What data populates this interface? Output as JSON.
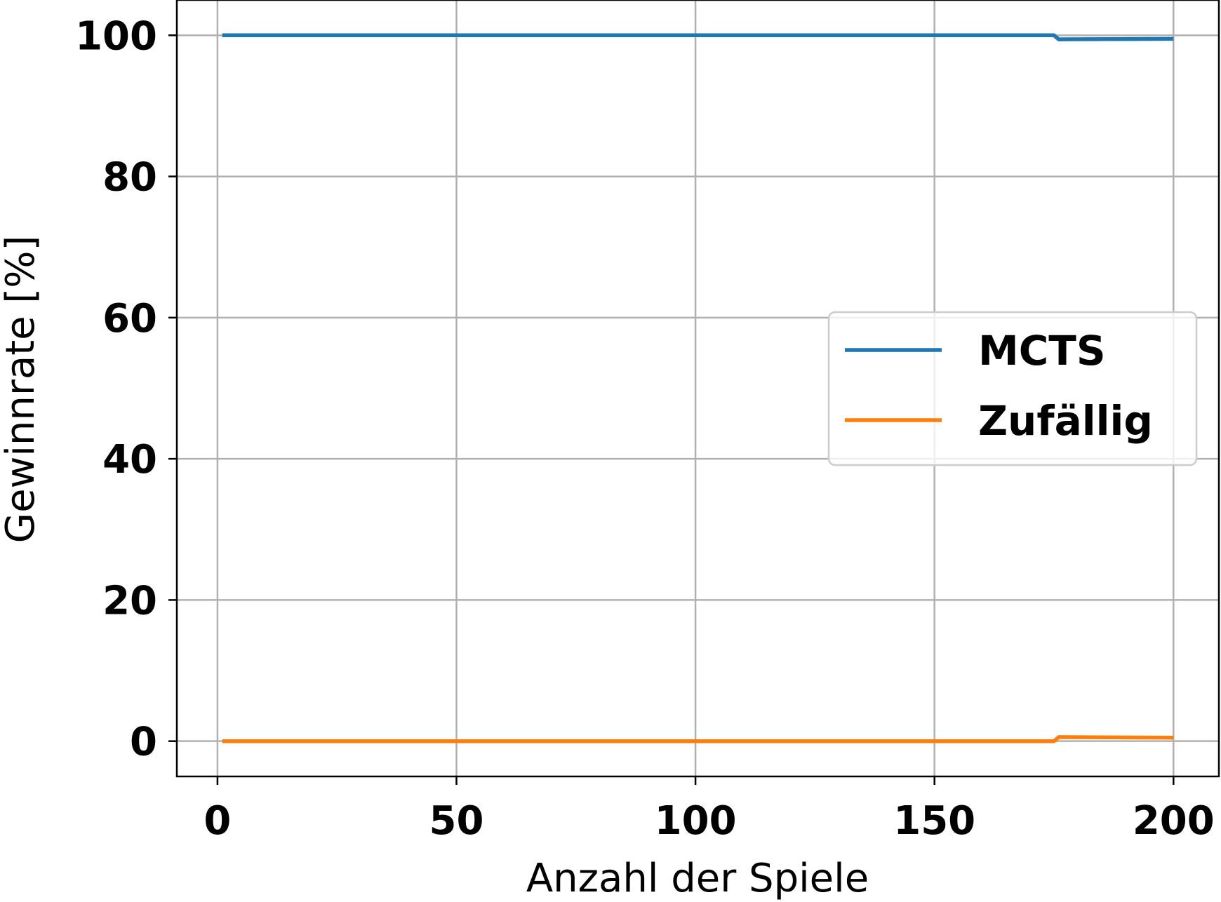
{
  "chart_data": {
    "type": "line",
    "title": "",
    "xlabel": "Anzahl der Spiele",
    "ylabel": "Gewinnrate [%]",
    "xlim": [
      -8.5,
      209.5
    ],
    "ylim": [
      -5,
      105
    ],
    "xticks": [
      0,
      50,
      100,
      150,
      200
    ],
    "yticks": [
      0,
      20,
      40,
      60,
      80,
      100
    ],
    "grid": true,
    "legend_position": "center-right",
    "series": [
      {
        "name": "MCTS",
        "color": "#1f77b4",
        "x": [
          1,
          174,
          175,
          176,
          200
        ],
        "y": [
          100,
          100,
          100,
          99.43,
          99.5
        ]
      },
      {
        "name": "Zufällig",
        "color": "#ff7f0e",
        "x": [
          1,
          174,
          175,
          176,
          200
        ],
        "y": [
          0,
          0,
          0,
          0.57,
          0.5
        ]
      }
    ]
  }
}
